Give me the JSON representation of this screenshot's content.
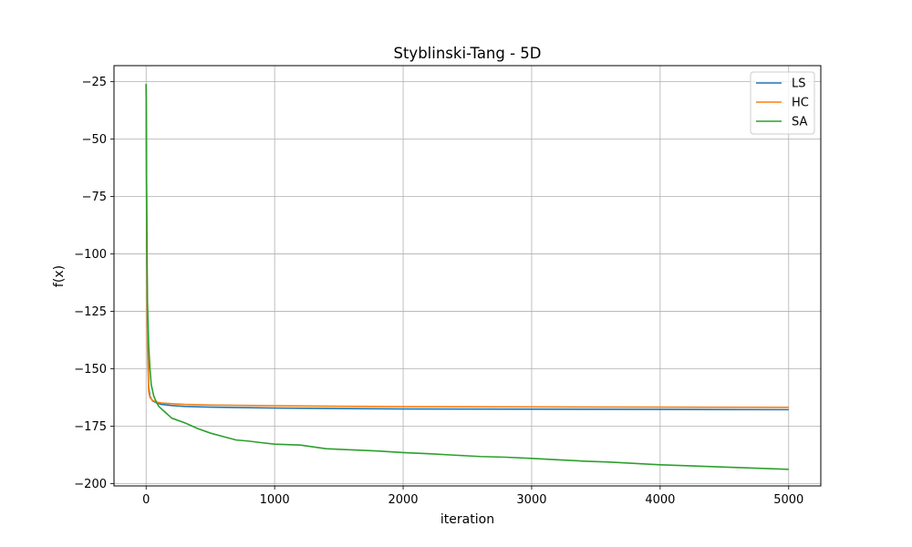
{
  "chart_data": {
    "type": "line",
    "title": "Styblinski-Tang - 5D",
    "xlabel": "iteration",
    "ylabel": "f(x)",
    "xlim": [
      -250,
      5250
    ],
    "ylim": [
      -201,
      -18
    ],
    "xticks": [
      0,
      1000,
      2000,
      3000,
      4000,
      5000
    ],
    "yticks": [
      -25,
      -50,
      -75,
      -100,
      -125,
      -150,
      -175,
      -200
    ],
    "xtick_labels": [
      "0",
      "1000",
      "2000",
      "3000",
      "4000",
      "5000"
    ],
    "ytick_labels": [
      "−25",
      "−50",
      "−75",
      "−100",
      "−125",
      "−150",
      "−175",
      "−200"
    ],
    "grid": true,
    "legend_position": "top-right",
    "series": [
      {
        "name": "LS",
        "color": "#1f77b4",
        "x": [
          0,
          5,
          10,
          20,
          30,
          50,
          80,
          120,
          200,
          300,
          500,
          1000,
          2000,
          3000,
          4000,
          5000
        ],
        "y": [
          -26,
          -90,
          -130,
          -158,
          -162,
          -164,
          -164.8,
          -165.5,
          -166,
          -166.4,
          -166.7,
          -167.1,
          -167.5,
          -167.6,
          -167.7,
          -167.8
        ]
      },
      {
        "name": "HC",
        "color": "#ff7f0e",
        "x": [
          0,
          5,
          10,
          20,
          30,
          50,
          80,
          120,
          200,
          300,
          500,
          1000,
          2000,
          3000,
          4000,
          5000
        ],
        "y": [
          -26,
          -92,
          -140,
          -160,
          -162.5,
          -163.8,
          -164.5,
          -164.9,
          -165.2,
          -165.5,
          -165.8,
          -166.1,
          -166.5,
          -166.6,
          -166.7,
          -166.8
        ]
      },
      {
        "name": "SA",
        "color": "#2ca02c",
        "x": [
          0,
          5,
          10,
          20,
          30,
          40,
          60,
          80,
          100,
          150,
          200,
          300,
          400,
          500,
          600,
          700,
          800,
          900,
          1000,
          1200,
          1300,
          1400,
          1600,
          1800,
          2000,
          2200,
          2400,
          2600,
          2800,
          3000,
          3200,
          3400,
          3600,
          3800,
          4000,
          4200,
          4400,
          4600,
          4800,
          5000
        ],
        "y": [
          -26,
          -85,
          -120,
          -140,
          -150,
          -157,
          -162,
          -164.5,
          -166.5,
          -169,
          -171.5,
          -173.5,
          -176,
          -178,
          -179.5,
          -181,
          -181.5,
          -182.2,
          -182.8,
          -183.2,
          -184,
          -184.8,
          -185.3,
          -185.8,
          -186.5,
          -187,
          -187.6,
          -188.2,
          -188.5,
          -189,
          -189.6,
          -190.2,
          -190.6,
          -191.2,
          -191.8,
          -192.2,
          -192.6,
          -193,
          -193.4,
          -193.8
        ]
      }
    ]
  }
}
